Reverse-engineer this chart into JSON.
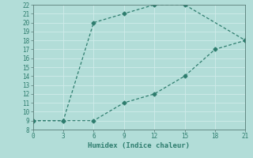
{
  "xlabel": "Humidex (Indice chaleur)",
  "line1_x": [
    0,
    3,
    6,
    9,
    12,
    15,
    21
  ],
  "line1_y": [
    9,
    9,
    20,
    21,
    22,
    22,
    18
  ],
  "line2_x": [
    0,
    3,
    6,
    9,
    12,
    15,
    18,
    21
  ],
  "line2_y": [
    9,
    9,
    9,
    11,
    12,
    14,
    17,
    18
  ],
  "line_color": "#2e7d6e",
  "bg_color": "#b2ddd8",
  "grid_color": "#d0ecea",
  "xlim": [
    0,
    21
  ],
  "ylim": [
    8,
    22
  ],
  "xticks": [
    0,
    3,
    6,
    9,
    12,
    15,
    18,
    21
  ],
  "yticks": [
    8,
    9,
    10,
    11,
    12,
    13,
    14,
    15,
    16,
    17,
    18,
    19,
    20,
    21,
    22
  ],
  "marker_size": 2.5,
  "linewidth": 0.9,
  "tick_labelsize": 5.5,
  "xlabel_fontsize": 6.5
}
